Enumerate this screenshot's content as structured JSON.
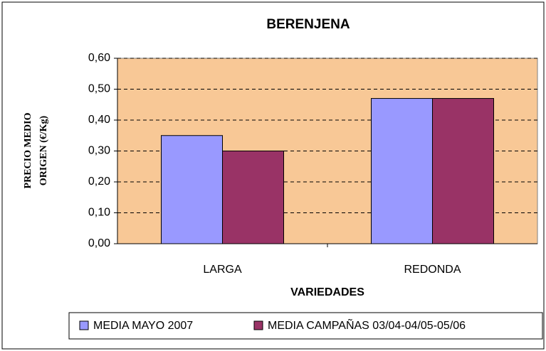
{
  "chart_data": {
    "type": "bar",
    "title": "BERENJENA",
    "x_label": "VARIEDADES",
    "y_label": [
      "PRECIO MEDIO",
      "ORIGEN (€/Kg)"
    ],
    "categories": [
      "LARGA",
      "REDONDA"
    ],
    "series": [
      {
        "name": "MEDIA MAYO 2007",
        "color": "#9999ff",
        "values": [
          0.35,
          0.47
        ]
      },
      {
        "name": "MEDIA CAMPAÑAS 03/04-04/05-05/06",
        "color": "#993366",
        "values": [
          0.3,
          0.47
        ]
      }
    ],
    "ylim": [
      0,
      0.6
    ],
    "yticks": [
      {
        "value": 0,
        "label": "0,00"
      },
      {
        "value": 0.1,
        "label": "0,10"
      },
      {
        "value": 0.2,
        "label": "0,20"
      },
      {
        "value": 0.3,
        "label": "0,30"
      },
      {
        "value": 0.4,
        "label": "0,40"
      },
      {
        "value": 0.5,
        "label": "0,50"
      },
      {
        "value": 0.6,
        "label": "0,60"
      }
    ],
    "grid": true,
    "plot_background": "#f8c896",
    "legend": "bottom"
  }
}
